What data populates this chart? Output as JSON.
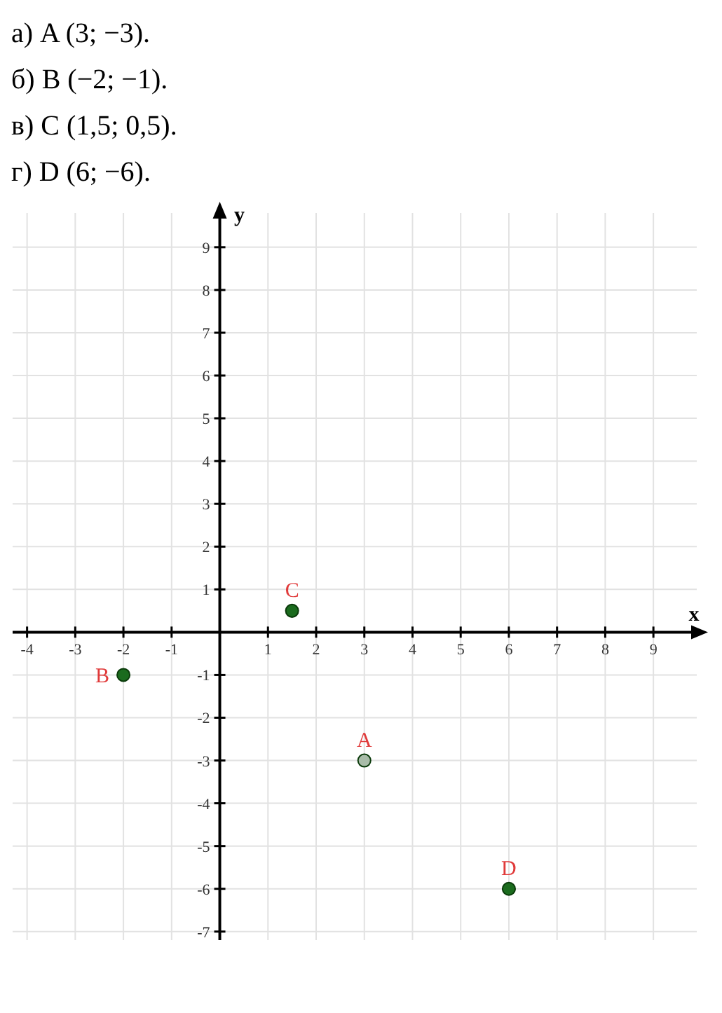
{
  "chart_data": {
    "type": "scatter",
    "xlabel": "x",
    "ylabel": "y",
    "annotations": [
      "а) A (3; −3).",
      "б) B (−2; −1).",
      "в) C (1,5; 0,5).",
      "г) D (6; −6).",
      {
        "text": "A",
        "x": 3,
        "y": -3
      },
      {
        "text": "B",
        "x": -2,
        "y": -1
      },
      {
        "text": "C",
        "x": 1.5,
        "y": 0.5
      },
      {
        "text": "D",
        "x": 6,
        "y": -6
      }
    ],
    "x": [
      3,
      -2,
      1.5,
      6
    ],
    "values": [
      -3,
      -1,
      0.5,
      -6
    ],
    "colors": [
      "#a9bca9",
      "#1b6b1e",
      "#1b6b1e",
      "#1b6b1e"
    ],
    "marker": "circle",
    "grid": true,
    "xlim": [
      -4.3,
      9.9
    ],
    "xticks": [
      -4,
      -3,
      -2,
      -1,
      1,
      2,
      3,
      4,
      5,
      6,
      7,
      8,
      9
    ],
    "ylim": [
      -7.2,
      9.8
    ],
    "yticks": [
      -7,
      -6,
      -5,
      -4,
      -3,
      -2,
      -1,
      1,
      2,
      3,
      4,
      5,
      6,
      7,
      8,
      9
    ]
  }
}
